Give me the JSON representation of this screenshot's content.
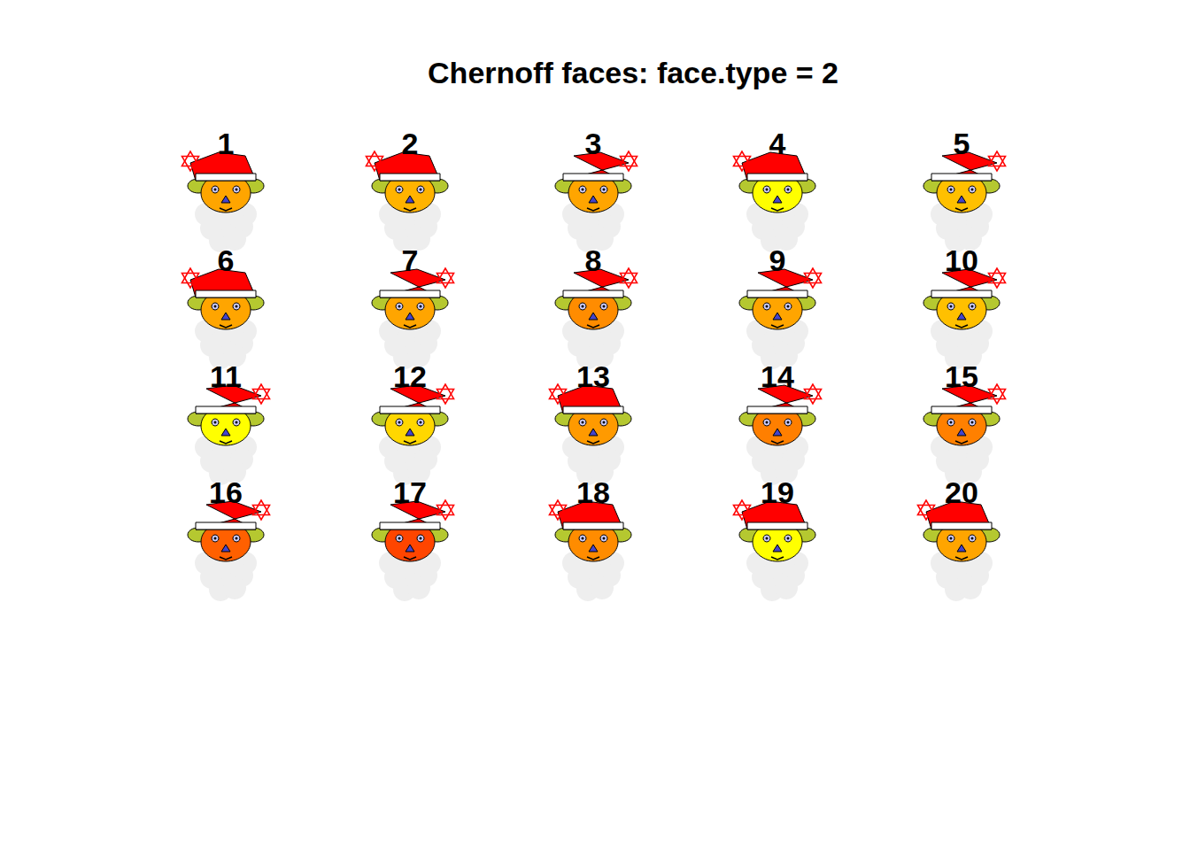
{
  "chart_data": {
    "type": "chernoff_faces",
    "title": "Chernoff faces: face.type = 2",
    "categories": [
      "1",
      "2",
      "3",
      "4",
      "5",
      "6",
      "7",
      "8",
      "9",
      "10",
      "11",
      "12",
      "13",
      "14",
      "15",
      "16",
      "17",
      "18",
      "19",
      "20"
    ],
    "colors": [
      "#FFA500",
      "#FFB300",
      "#FFA500",
      "#FFFF00",
      "#FFC000",
      "#FFA500",
      "#FFA500",
      "#FF8C00",
      "#FFA500",
      "#FFC000",
      "#FFFF00",
      "#FFD700",
      "#FF9A00",
      "#FF7F00",
      "#FF8000",
      "#FF6000",
      "#FF4500",
      "#FF8C00",
      "#FFFF00",
      "#FFA500"
    ]
  }
}
